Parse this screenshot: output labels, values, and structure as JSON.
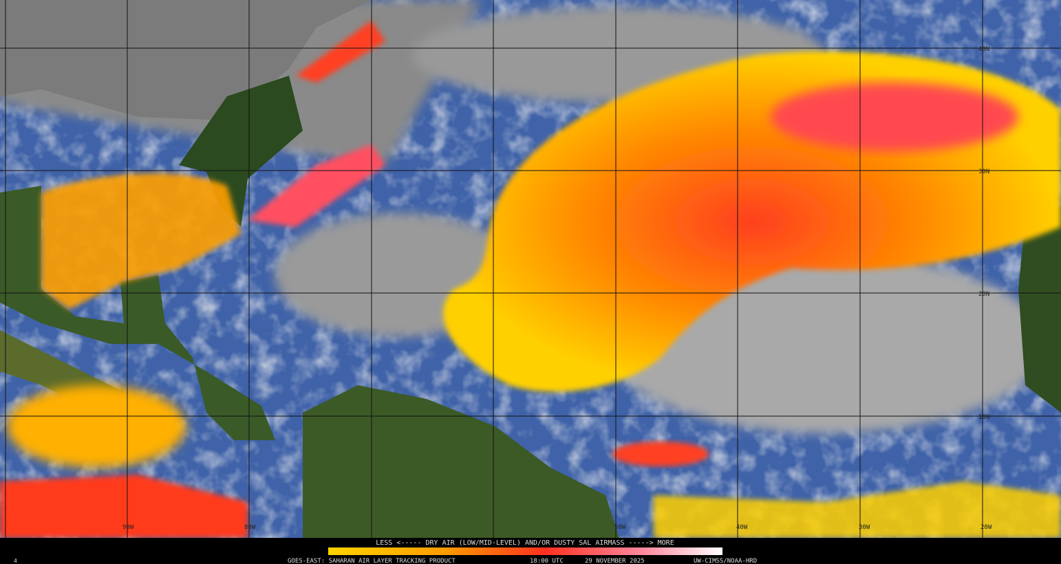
{
  "legend": {
    "caption": "LESS <----- DRY AIR (LOW/MID-LEVEL) AND/OR DUSTY SAL AIRMASS -----> MORE"
  },
  "footer": {
    "frame": "4",
    "product": "GOES-EAST: SAHARAN AIR LAYER TRACKING PRODUCT",
    "time": "18:00 UTC",
    "date": "29 NOVEMBER 2025",
    "credit": "UW-CIMSS/NOAA-HRD"
  },
  "grid_labels": {
    "longitudes": [
      "90W",
      "80W",
      "50W",
      "40W",
      "30W",
      "20W"
    ],
    "latitudes": [
      "40N",
      "30N",
      "20N",
      "10N"
    ]
  }
}
